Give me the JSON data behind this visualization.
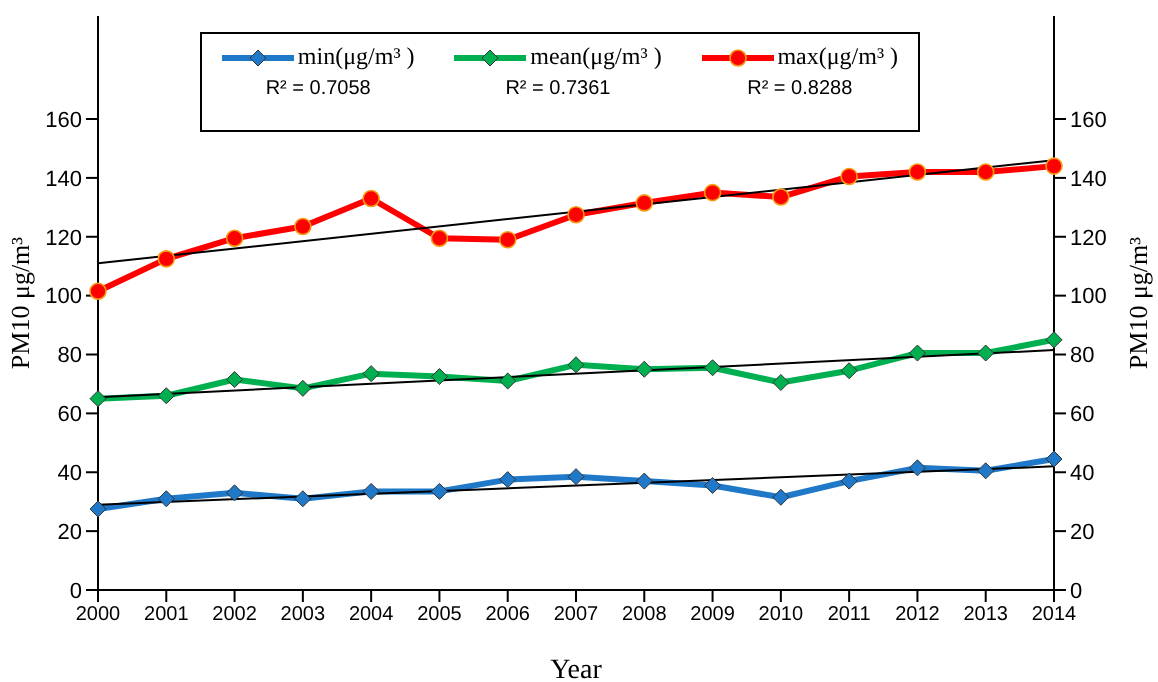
{
  "chart_data": {
    "type": "line",
    "categories": [
      "2000",
      "2001",
      "2002",
      "2003",
      "2004",
      "2005",
      "2006",
      "2007",
      "2008",
      "2009",
      "2010",
      "2011",
      "2012",
      "2013",
      "2014"
    ],
    "series": [
      {
        "name": "min(μg/m³ )",
        "color": "#1f78c8",
        "marker": "diamond",
        "values": [
          27.5,
          31,
          33,
          31,
          33.5,
          33.5,
          37.5,
          38.5,
          37,
          35.5,
          31.5,
          37,
          41.5,
          40.5,
          44.5
        ]
      },
      {
        "name": "mean(μg/m³ )",
        "color": "#00b050",
        "marker": "diamond",
        "values": [
          65,
          66,
          71.5,
          68.5,
          73.5,
          72.5,
          71,
          76.5,
          75,
          75.5,
          70.5,
          74.5,
          80.5,
          80.5,
          85
        ]
      },
      {
        "name": "max(μg/m³ )",
        "color": "#ff0000",
        "marker": "circle",
        "values": [
          101.5,
          112.5,
          119.5,
          123.5,
          133,
          119.5,
          119,
          127.5,
          131.5,
          135,
          133.5,
          140.5,
          142,
          142,
          144
        ]
      },
      {
        "color": "#000000",
        "marker": "none",
        "values": [
          29,
          null,
          null,
          null,
          null,
          null,
          null,
          null,
          null,
          null,
          null,
          null,
          null,
          null,
          42
        ]
      },
      {
        "color": "#000000",
        "marker": "none",
        "values": [
          65.5,
          null,
          null,
          null,
          null,
          null,
          null,
          null,
          null,
          null,
          null,
          null,
          null,
          null,
          81.5
        ]
      },
      {
        "color": "#000000",
        "marker": "none",
        "values": [
          111,
          null,
          null,
          null,
          null,
          null,
          null,
          null,
          null,
          null,
          null,
          null,
          null,
          null,
          146
        ]
      }
    ],
    "annotations": [
      "R² = 0.7058",
      "R² = 0.7361",
      "R² = 0.8288"
    ],
    "xlabel": "Year",
    "ylabel": "PM10 μg/m³",
    "y2label": "PM10 μg/m³",
    "ylim": [
      0,
      195
    ],
    "yticks": [
      0,
      20,
      40,
      60,
      80,
      100,
      120,
      140,
      160
    ],
    "y2lim": [
      0,
      195
    ],
    "y2ticks": [
      0,
      20,
      40,
      60,
      80,
      100,
      120,
      140,
      160
    ],
    "legend": "top",
    "grid": false
  }
}
